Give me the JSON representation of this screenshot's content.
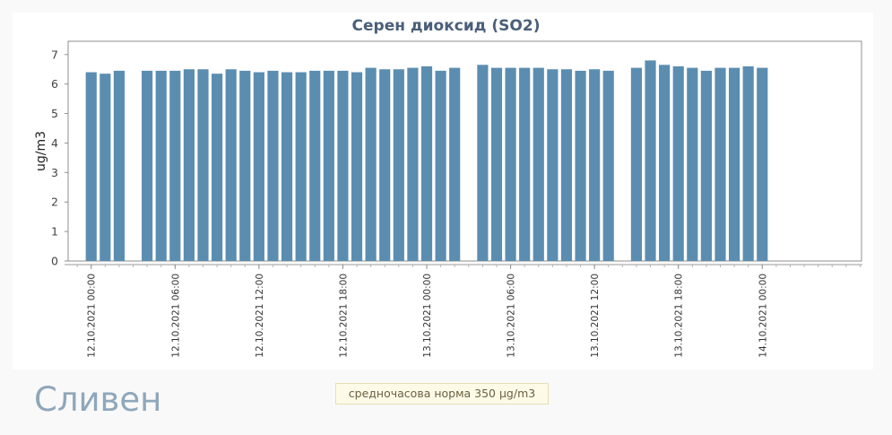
{
  "page": {
    "city": "Сливен",
    "norm_note": "средночасова норма 350 µg/m3"
  },
  "chart_data": {
    "type": "bar",
    "title": "Серен диоксид (SO2)",
    "ylabel": "ug/m3",
    "xlabel": "",
    "ylim": [
      0,
      7.45
    ],
    "yticks": [
      0,
      1,
      2,
      3,
      4,
      5,
      6,
      7
    ],
    "grid": false,
    "color": "#5b8db0",
    "x_start": "12.10.2021 00:00",
    "x_step_hours": 1,
    "x_range_hours": [
      -1.65,
      55.1
    ],
    "xtick_labels": [
      {
        "hour": 0,
        "label": "12.10.2021 00:00"
      },
      {
        "hour": 6,
        "label": "12.10.2021 06:00"
      },
      {
        "hour": 12,
        "label": "12.10.2021 12:00"
      },
      {
        "hour": 18,
        "label": "12.10.2021 18:00"
      },
      {
        "hour": 24,
        "label": "13.10.2021 00:00"
      },
      {
        "hour": 30,
        "label": "13.10.2021 06:00"
      },
      {
        "hour": 36,
        "label": "13.10.2021 12:00"
      },
      {
        "hour": 42,
        "label": "13.10.2021 18:00"
      },
      {
        "hour": 48,
        "label": "14.10.2021 00:00"
      }
    ],
    "values": [
      6.4,
      6.35,
      6.45,
      null,
      6.45,
      6.45,
      6.45,
      6.5,
      6.5,
      6.35,
      6.5,
      6.45,
      6.4,
      6.45,
      6.4,
      6.4,
      6.45,
      6.45,
      6.45,
      6.4,
      6.55,
      6.5,
      6.5,
      6.55,
      6.6,
      6.45,
      6.55,
      null,
      6.65,
      6.55,
      6.55,
      6.55,
      6.55,
      6.5,
      6.5,
      6.45,
      6.5,
      6.45,
      null,
      6.55,
      6.8,
      6.65,
      6.6,
      6.55,
      6.45,
      6.55,
      6.55,
      6.6,
      6.55
    ]
  }
}
